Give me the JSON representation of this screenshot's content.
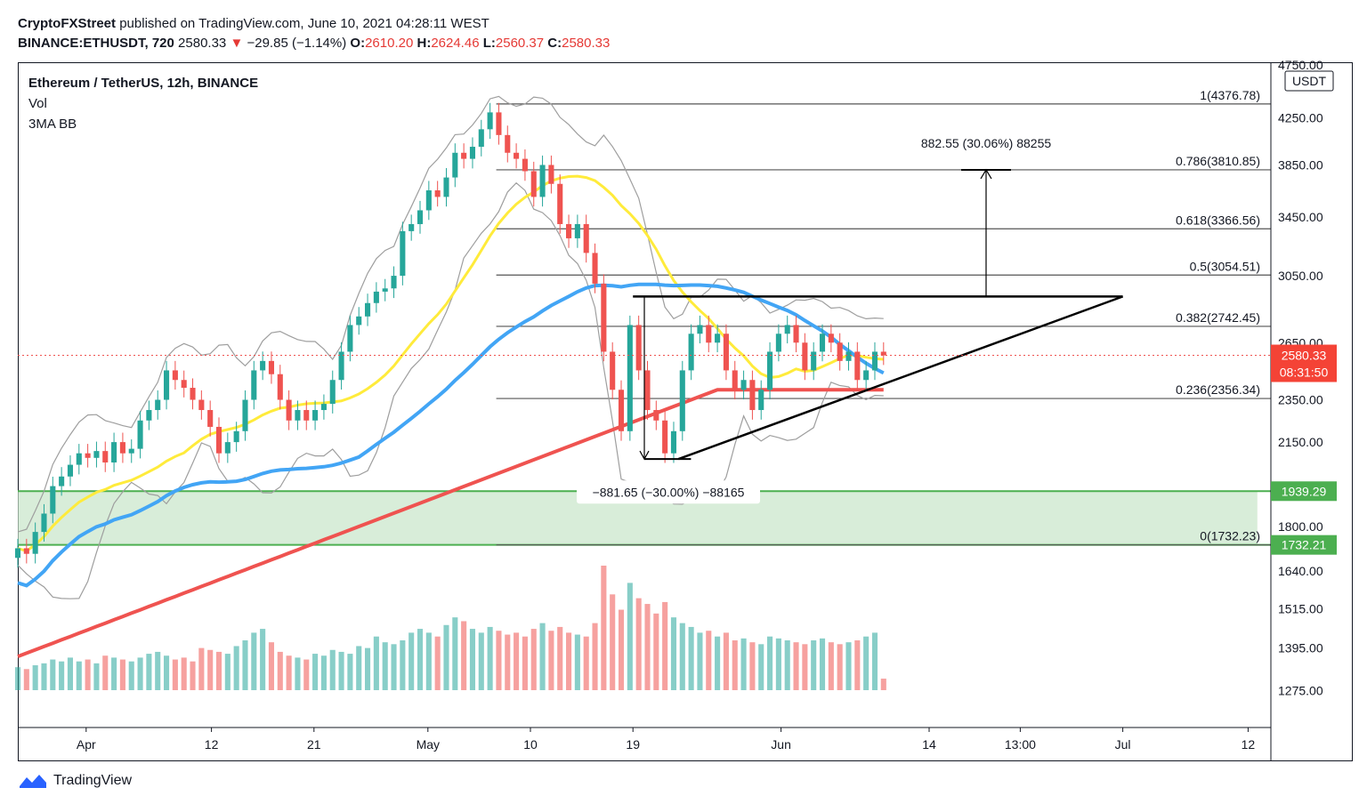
{
  "header": {
    "publisher": "CryptoFXStreet",
    "published_text": "published on TradingView.com, June 10, 2021 04:28:11 WEST",
    "symbol": "BINANCE:ETHUSDT, 720",
    "last": "2580.33",
    "arrow": "▼",
    "change": "−29.85 (−1.14%)",
    "o_label": "O:",
    "o_value": "2610.20",
    "h_label": "H:",
    "h_value": "2624.46",
    "l_label": "L:",
    "l_value": "2560.37",
    "c_label": "C:",
    "c_value": "2580.33"
  },
  "legend": {
    "title": "Ethereum / TetherUS, 12h, BINANCE",
    "vol": "Vol",
    "indicator": "3MA BB"
  },
  "currency": "USDT",
  "price_tag": {
    "price": "2580.33",
    "countdown": "08:31:50"
  },
  "footer": {
    "brand": "TradingView",
    "logo_icon": "tradingview-logo-icon"
  },
  "colors": {
    "up": "#26a69a",
    "down": "#ef5350",
    "ma_yellow": "#ffeb3b",
    "ma_blue": "#42a5f5",
    "ma_red": "#ef5350",
    "support_green": "#4caf50",
    "zone_fill": "#c8e6c9"
  },
  "chart_data": {
    "type": "candlestick",
    "title": "Ethereum / TetherUS, 12h, BINANCE",
    "y_scale": "log",
    "ylim": [
      1180,
      4760
    ],
    "y_ticks": [
      "4750.00",
      "4250.00",
      "3850.00",
      "3450.00",
      "3050.00",
      "2650.00",
      "2350.00",
      "2150.00",
      "1800.00",
      "1640.00",
      "1515.00",
      "1395.00",
      "1275.00"
    ],
    "x_ticks": [
      "Apr",
      "12",
      "21",
      "May",
      "10",
      "19",
      "Jun",
      "14",
      "13:00",
      "Jul",
      "12"
    ],
    "fibonacci": [
      {
        "label": "1(4376.78)",
        "ratio": 1,
        "price": 4376.78
      },
      {
        "label": "0.786(3810.85)",
        "ratio": 0.786,
        "price": 3810.85
      },
      {
        "label": "0.618(3366.56)",
        "ratio": 0.618,
        "price": 3366.56
      },
      {
        "label": "0.5(3054.51)",
        "ratio": 0.5,
        "price": 3054.51
      },
      {
        "label": "0.382(2742.45)",
        "ratio": 0.382,
        "price": 2742.45
      },
      {
        "label": "0.236(2356.34)",
        "ratio": 0.236,
        "price": 2356.34
      },
      {
        "label": "0(1732.23)",
        "ratio": 0,
        "price": 1732.23
      }
    ],
    "support_levels": [
      {
        "price": 1939.29,
        "label": "1939.29"
      },
      {
        "price": 1732.21,
        "label": "1732.21"
      }
    ],
    "measure_up": "882.55 (30.06%) 88255",
    "measure_down": "−881.65 (−30.00%) −88165",
    "triangle": {
      "resistance": 2920,
      "apex_date": "2021-07-01",
      "base_low": 2075
    },
    "dates": [
      "2021-03-26",
      "2021-06-10"
    ],
    "closes": [
      1720,
      1700,
      1780,
      1850,
      1960,
      2000,
      2050,
      2100,
      2080,
      2110,
      2060,
      2150,
      2100,
      2120,
      2250,
      2300,
      2350,
      2500,
      2450,
      2410,
      2350,
      2300,
      2220,
      2100,
      2150,
      2200,
      2350,
      2500,
      2550,
      2480,
      2350,
      2250,
      2300,
      2250,
      2300,
      2330,
      2450,
      2600,
      2750,
      2800,
      2880,
      2950,
      2970,
      3050,
      3350,
      3400,
      3500,
      3650,
      3600,
      3750,
      3950,
      3900,
      4000,
      4150,
      4300,
      4100,
      3950,
      3900,
      3800,
      3600,
      3850,
      3700,
      3400,
      3300,
      3400,
      3200,
      3000,
      2600,
      2400,
      2200,
      2750,
      2500,
      2300,
      2250,
      2100,
      2200,
      2500,
      2700,
      2750,
      2650,
      2700,
      2500,
      2400,
      2450,
      2300,
      2400,
      2600,
      2700,
      2750,
      2650,
      2500,
      2600,
      2700,
      2650,
      2550,
      2600,
      2450,
      2500,
      2600,
      2580
    ],
    "volume": [
      120,
      110,
      130,
      140,
      160,
      150,
      170,
      150,
      160,
      140,
      180,
      170,
      160,
      150,
      170,
      190,
      200,
      180,
      160,
      170,
      150,
      220,
      210,
      200,
      190,
      230,
      260,
      300,
      320,
      250,
      200,
      180,
      170,
      160,
      190,
      180,
      210,
      200,
      190,
      230,
      220,
      280,
      250,
      240,
      260,
      300,
      320,
      300,
      280,
      340,
      380,
      360,
      320,
      300,
      330,
      310,
      290,
      300,
      280,
      320,
      350,
      310,
      330,
      300,
      290,
      280,
      350,
      650,
      500,
      420,
      560,
      480,
      450,
      400,
      460,
      380,
      350,
      330,
      300,
      310,
      280,
      300,
      260,
      270,
      250,
      240,
      280,
      270,
      260,
      250,
      240,
      260,
      270,
      250,
      240,
      250,
      260,
      280,
      300,
      60
    ]
  }
}
